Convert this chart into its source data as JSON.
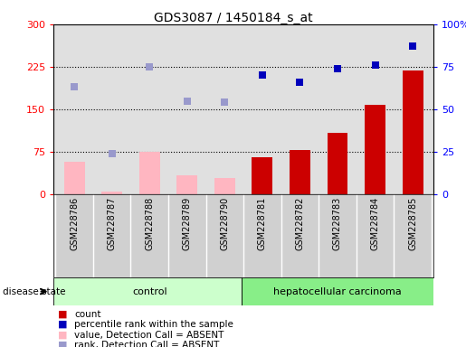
{
  "title": "GDS3087 / 1450184_s_at",
  "samples": [
    "GSM228786",
    "GSM228787",
    "GSM228788",
    "GSM228789",
    "GSM228790",
    "GSM228781",
    "GSM228782",
    "GSM228783",
    "GSM228784",
    "GSM228785"
  ],
  "bar_values": [
    58,
    5,
    75,
    33,
    28,
    66,
    78,
    108,
    158,
    218
  ],
  "bar_absent": [
    true,
    true,
    true,
    true,
    true,
    false,
    false,
    false,
    false,
    false
  ],
  "scatter_dark_vals": [
    null,
    null,
    null,
    null,
    null,
    70,
    66,
    74,
    76,
    87
  ],
  "scatter_light_vals": [
    63,
    24,
    75,
    55,
    54,
    null,
    null,
    null,
    null,
    null
  ],
  "ylim_left": [
    0,
    300
  ],
  "ylim_right": [
    0,
    100
  ],
  "yticks_left": [
    0,
    75,
    150,
    225,
    300
  ],
  "yticks_right": [
    0,
    25,
    50,
    75,
    100
  ],
  "ytick_labels_left": [
    "0",
    "75",
    "150",
    "225",
    "300"
  ],
  "ytick_labels_right": [
    "0",
    "25",
    "50",
    "75",
    "100%"
  ],
  "bar_color_absent": "#ffb6c1",
  "bar_color_present": "#cc0000",
  "scatter_dark_blue": "#0000bb",
  "scatter_light_blue": "#9999cc",
  "plot_bg": "#e0e0e0",
  "sample_bg": "#d0d0d0",
  "ctrl_color": "#ccffcc",
  "canc_color": "#88ee88",
  "background_color": "#ffffff"
}
